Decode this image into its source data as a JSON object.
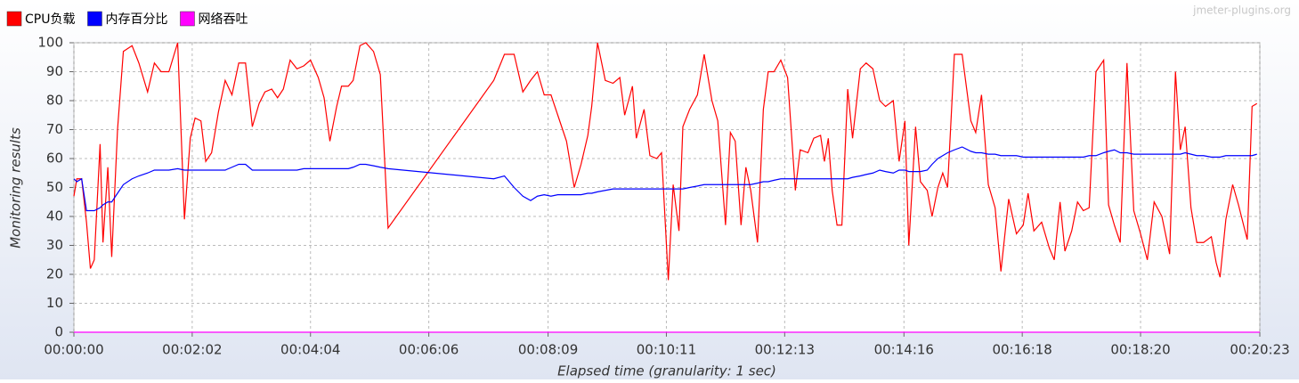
{
  "chart_data": {
    "type": "line",
    "watermark": "jmeter-plugins.org",
    "xlabel": "Elapsed time (granularity: 1 sec)",
    "ylabel": "Monitoring results",
    "grid": true,
    "legend": "top-left",
    "xlim": [
      0,
      1223
    ],
    "ylim": [
      0,
      100
    ],
    "yticks": [
      0,
      10,
      20,
      30,
      40,
      50,
      60,
      70,
      80,
      90,
      100
    ],
    "xticks": [
      {
        "value": 0,
        "label": "00:00:00"
      },
      {
        "value": 122,
        "label": "00:02:02"
      },
      {
        "value": 244,
        "label": "00:04:04"
      },
      {
        "value": 366,
        "label": "00:06:06"
      },
      {
        "value": 489,
        "label": "00:08:09"
      },
      {
        "value": 611,
        "label": "00:10:11"
      },
      {
        "value": 733,
        "label": "00:12:13"
      },
      {
        "value": 856,
        "label": "00:14:16"
      },
      {
        "value": 978,
        "label": "00:16:18"
      },
      {
        "value": 1100,
        "label": "00:18:20"
      },
      {
        "value": 1223,
        "label": "00:20:23"
      }
    ],
    "x": [
      0,
      3,
      8,
      13,
      17,
      21,
      27,
      30,
      35,
      39,
      45,
      51,
      60,
      67,
      76,
      83,
      90,
      98,
      107,
      114,
      120,
      125,
      131,
      136,
      142,
      149,
      156,
      163,
      170,
      177,
      184,
      191,
      197,
      204,
      210,
      216,
      223,
      230,
      237,
      244,
      252,
      258,
      264,
      271,
      276,
      283,
      288,
      295,
      301,
      309,
      316,
      324,
      433,
      444,
      454,
      463,
      471,
      478,
      485,
      492,
      499,
      508,
      516,
      523,
      530,
      534,
      540,
      548,
      556,
      563,
      568,
      576,
      580,
      588,
      594,
      601,
      606,
      613,
      618,
      624,
      628,
      635,
      643,
      650,
      658,
      664,
      672,
      677,
      682,
      688,
      693,
      698,
      705,
      711,
      716,
      722,
      729,
      736,
      744,
      749,
      757,
      763,
      770,
      774,
      778,
      782,
      787,
      792,
      798,
      803,
      811,
      817,
      824,
      831,
      837,
      845,
      851,
      857,
      861,
      868,
      873,
      880,
      885,
      891,
      896,
      901,
      908,
      916,
      925,
      930,
      936,
      943,
      950,
      956,
      964,
      972,
      979,
      984,
      990,
      998,
      1006,
      1011,
      1017,
      1022,
      1029,
      1035,
      1041,
      1047,
      1054,
      1062,
      1067,
      1073,
      1079,
      1086,
      1093,
      1100,
      1107,
      1114,
      1122,
      1130,
      1136,
      1141,
      1146,
      1152,
      1158,
      1165,
      1173,
      1178,
      1182,
      1188,
      1195,
      1201,
      1210,
      1215,
      1220
    ],
    "series": [
      {
        "name": "CPU负载",
        "color": "#ff0000",
        "values": [
          47,
          53,
          53,
          38,
          22,
          25,
          65,
          31,
          57,
          26,
          70,
          97,
          99,
          93,
          83,
          93,
          90,
          90,
          100,
          39,
          67,
          74,
          73,
          59,
          62,
          76,
          87,
          82,
          93,
          93,
          71,
          79,
          83,
          84,
          81,
          84,
          94,
          91,
          92,
          94,
          88,
          81,
          66,
          78,
          85,
          85,
          87,
          99,
          100,
          97,
          89,
          36,
          87,
          96,
          96,
          83,
          87,
          90,
          82,
          82,
          75,
          66,
          50,
          58,
          68,
          78,
          100,
          87,
          86,
          88,
          75,
          85,
          67,
          77,
          61,
          60,
          62,
          18,
          51,
          35,
          71,
          77,
          82,
          96,
          80,
          73,
          37,
          69,
          66,
          37,
          57,
          49,
          31,
          77,
          90,
          90,
          94,
          88,
          49,
          63,
          62,
          67,
          68,
          59,
          67,
          49,
          37,
          37,
          84,
          67,
          91,
          93,
          91,
          80,
          78,
          80,
          59,
          73,
          30,
          71,
          52,
          49,
          40,
          50,
          55,
          50,
          96,
          96,
          73,
          69,
          82,
          51,
          43,
          21,
          46,
          34,
          37,
          48,
          35,
          38,
          29,
          25,
          45,
          28,
          35,
          45,
          42,
          43,
          90,
          94,
          44,
          37,
          31,
          93,
          42,
          34,
          25,
          45,
          40,
          27,
          90,
          63,
          71,
          43,
          31,
          31,
          33,
          24,
          19,
          39,
          51,
          44,
          32,
          78,
          79
        ]
      },
      {
        "name": "内存百分比",
        "color": "#0000ff",
        "values": [
          53,
          52,
          53,
          42,
          42,
          42,
          43,
          44,
          45,
          45,
          48,
          51,
          53,
          54,
          55,
          56,
          56,
          56,
          56.5,
          56,
          56,
          56,
          56,
          56,
          56,
          56,
          56,
          57,
          58,
          58,
          56,
          56,
          56,
          56,
          56,
          56,
          56,
          56,
          56.5,
          56.5,
          56.5,
          56.5,
          56.5,
          56.5,
          56.5,
          56.5,
          57,
          58,
          58,
          57.5,
          57,
          56.5,
          53,
          54,
          50,
          47,
          45.5,
          47,
          47.5,
          47,
          47.5,
          47.5,
          47.5,
          47.5,
          48,
          48,
          48.5,
          49,
          49.5,
          49.5,
          49.5,
          49.5,
          49.5,
          49.5,
          49.5,
          49.5,
          49.5,
          49.5,
          49.5,
          49.5,
          49.5,
          50,
          50.5,
          51,
          51,
          51,
          51,
          51,
          51,
          51,
          51,
          51,
          51.5,
          52,
          52,
          52.5,
          53,
          53,
          53,
          53,
          53,
          53,
          53,
          53,
          53,
          53,
          53,
          53,
          53,
          53.5,
          54,
          54.5,
          55,
          56,
          55.5,
          55,
          56,
          56,
          55.5,
          55.5,
          55.5,
          56,
          58,
          60,
          61,
          62,
          63,
          64,
          62.5,
          62,
          62,
          61.5,
          61.5,
          61,
          61,
          61,
          60.5,
          60.5,
          60.5,
          60.5,
          60.5,
          60.5,
          60.5,
          60.5,
          60.5,
          60.5,
          60.5,
          61,
          61,
          62,
          62.5,
          63,
          62,
          62,
          61.5,
          61.5,
          61.5,
          61.5,
          61.5,
          61.5,
          61.5,
          61.5,
          62,
          61.5,
          61,
          61,
          60.5,
          60.5,
          60.5,
          61,
          61,
          61,
          61,
          61,
          61.5
        ]
      },
      {
        "name": "网络吞吐",
        "color": "#ff00ff",
        "x": [
          0,
          1223
        ],
        "values": [
          0,
          0
        ]
      }
    ]
  }
}
